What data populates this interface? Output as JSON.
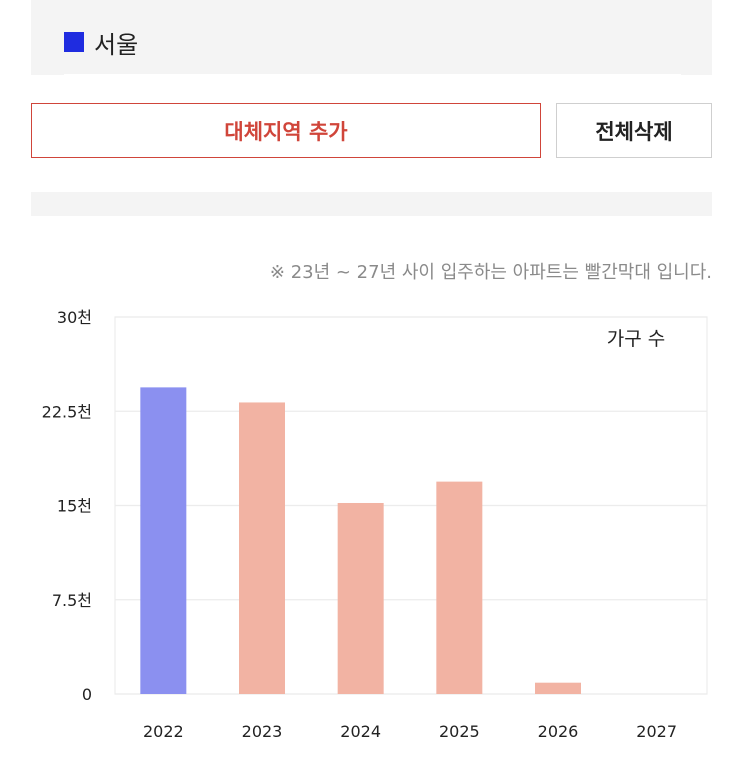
{
  "region": {
    "label": "서울",
    "color": "#1f2ce0"
  },
  "buttons": {
    "add_region": "대체지역 추가",
    "delete_all": "전체삭제"
  },
  "note": "※ 23년 ~ 27년 사이 입주하는 아파트는 빨간막대 입니다.",
  "colors": {
    "accent_red": "#d0453a",
    "bar_blue": "#8b90f0",
    "bar_salmon": "#f2b3a3"
  },
  "chart_data": {
    "type": "bar",
    "title": "",
    "xlabel": "",
    "ylabel": "",
    "legend": "가구 수",
    "legend_position": "top-right",
    "categories": [
      "2022",
      "2023",
      "2024",
      "2025",
      "2026",
      "2027"
    ],
    "values": [
      24400,
      23200,
      15200,
      16900,
      900,
      0
    ],
    "bar_colors": [
      "#8b90f0",
      "#f2b3a3",
      "#f2b3a3",
      "#f2b3a3",
      "#f2b3a3",
      "#f2b3a3"
    ],
    "ylim": [
      0,
      30000
    ],
    "yticks": [
      {
        "value": 0,
        "label": "0"
      },
      {
        "value": 7500,
        "label": "7.5천"
      },
      {
        "value": 15000,
        "label": "15천"
      },
      {
        "value": 22500,
        "label": "22.5천"
      },
      {
        "value": 30000,
        "label": "30천"
      }
    ],
    "grid": true
  }
}
